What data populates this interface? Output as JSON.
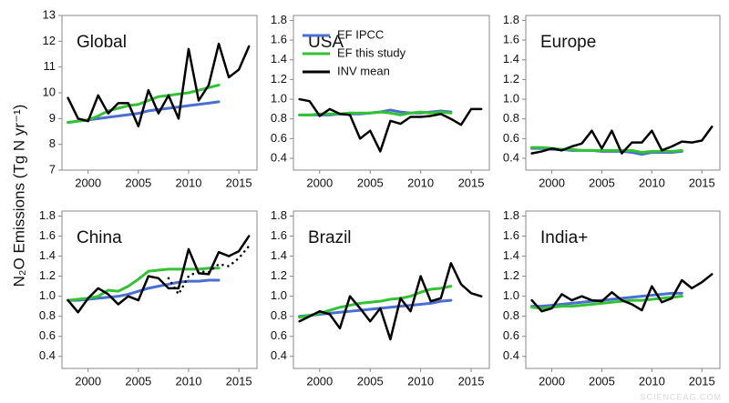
{
  "ylabel": "N₂O Emissions  (Tg N yr⁻¹)",
  "watermark": "SCIENCEAG.COM",
  "chart_data": [
    {
      "type": "line",
      "title": "Global",
      "x": [
        1998,
        1999,
        2000,
        2001,
        2002,
        2003,
        2004,
        2005,
        2006,
        2007,
        2008,
        2009,
        2010,
        2011,
        2012,
        2013,
        2014,
        2015,
        2016
      ],
      "xlim": [
        1997.4,
        2016.8
      ],
      "ylim": [
        7,
        13
      ],
      "xticks": [
        2000,
        2005,
        2010,
        2015
      ],
      "yticks": [
        7,
        8,
        9,
        10,
        11,
        12,
        13
      ],
      "series": [
        {
          "color": "#4a6fd1",
          "values": [
            8.85,
            8.9,
            8.95,
            9.0,
            9.05,
            9.1,
            9.15,
            9.2,
            9.3,
            9.35,
            9.4,
            9.45,
            9.5,
            9.55,
            9.6,
            9.65,
            null,
            null,
            null
          ]
        },
        {
          "color": "#33c233",
          "values": [
            8.85,
            8.9,
            8.95,
            9.1,
            9.3,
            9.4,
            9.5,
            9.55,
            9.7,
            9.85,
            9.9,
            9.95,
            10.0,
            10.1,
            10.2,
            10.3,
            null,
            null,
            null
          ]
        },
        {
          "color": "#000000",
          "values": [
            9.8,
            9.0,
            8.9,
            9.9,
            9.2,
            9.6,
            9.6,
            8.7,
            10.1,
            9.2,
            9.9,
            9.0,
            11.7,
            9.7,
            10.3,
            11.9,
            10.6,
            10.9,
            11.8
          ]
        }
      ]
    },
    {
      "type": "line",
      "title": "USA",
      "x": [
        1998,
        1999,
        2000,
        2001,
        2002,
        2003,
        2004,
        2005,
        2006,
        2007,
        2008,
        2009,
        2010,
        2011,
        2012,
        2013,
        2014,
        2015,
        2016
      ],
      "xlim": [
        1997.4,
        2016.8
      ],
      "ylim": [
        0.28,
        1.85
      ],
      "xticks": [
        2000,
        2005,
        2010,
        2015
      ],
      "yticks": [
        0.4,
        0.6,
        0.8,
        {
          "value": 1,
          "label": "1.0"
        },
        1.2,
        1.4,
        1.6,
        1.8
      ],
      "legend": "upper left",
      "series": [
        {
          "name": "EF IPCC",
          "color": "#4a6fd1",
          "values": [
            0.84,
            0.84,
            0.84,
            0.84,
            0.85,
            0.85,
            0.85,
            0.86,
            0.87,
            0.89,
            0.87,
            0.86,
            0.86,
            0.87,
            0.88,
            0.87,
            null,
            null,
            null
          ]
        },
        {
          "name": "EF this study",
          "color": "#33c233",
          "values": [
            0.84,
            0.84,
            0.85,
            0.85,
            0.85,
            0.86,
            0.86,
            0.86,
            0.87,
            0.86,
            0.84,
            0.86,
            0.87,
            0.86,
            0.87,
            0.86,
            null,
            null,
            null
          ]
        },
        {
          "name": "INV mean",
          "color": "#000000",
          "values": [
            1.0,
            0.98,
            0.83,
            0.9,
            0.85,
            0.84,
            0.6,
            0.68,
            0.47,
            0.78,
            0.75,
            0.82,
            0.82,
            0.83,
            0.85,
            0.8,
            0.74,
            0.9,
            0.9
          ]
        }
      ]
    },
    {
      "type": "line",
      "title": "Europe",
      "x": [
        1998,
        1999,
        2000,
        2001,
        2002,
        2003,
        2004,
        2005,
        2006,
        2007,
        2008,
        2009,
        2010,
        2011,
        2012,
        2013,
        2014,
        2015,
        2016
      ],
      "xlim": [
        1997.4,
        2016.8
      ],
      "ylim": [
        0.28,
        1.85
      ],
      "xticks": [
        2000,
        2005,
        2010,
        2015
      ],
      "yticks": [
        0.4,
        0.6,
        0.8,
        {
          "value": 1,
          "label": "1.0"
        },
        1.2,
        1.4,
        1.6,
        1.8
      ],
      "series": [
        {
          "color": "#4a6fd1",
          "values": [
            0.5,
            0.5,
            0.49,
            0.49,
            0.48,
            0.48,
            0.48,
            0.47,
            0.47,
            0.47,
            0.46,
            0.44,
            0.46,
            0.46,
            0.46,
            0.47,
            null,
            null,
            null
          ]
        },
        {
          "color": "#33c233",
          "values": [
            0.51,
            0.51,
            0.5,
            0.49,
            0.49,
            0.48,
            0.48,
            0.48,
            0.48,
            0.48,
            0.48,
            0.46,
            0.47,
            0.47,
            0.47,
            0.48,
            null,
            null,
            null
          ]
        },
        {
          "color": "#000000",
          "values": [
            0.45,
            0.47,
            0.5,
            0.48,
            0.52,
            0.55,
            0.68,
            0.5,
            0.68,
            0.45,
            0.56,
            0.56,
            0.68,
            0.48,
            0.52,
            0.57,
            0.56,
            0.58,
            0.72
          ]
        }
      ]
    },
    {
      "type": "line",
      "title": "China",
      "x": [
        1998,
        1999,
        2000,
        2001,
        2002,
        2003,
        2004,
        2005,
        2006,
        2007,
        2008,
        2009,
        2010,
        2011,
        2012,
        2013,
        2014,
        2015,
        2016
      ],
      "xlim": [
        1997.4,
        2016.8
      ],
      "ylim": [
        0.28,
        1.85
      ],
      "xticks": [
        2000,
        2005,
        2010,
        2015
      ],
      "yticks": [
        0.4,
        0.6,
        0.8,
        {
          "value": 1,
          "label": "1.0"
        },
        1.2,
        1.4,
        1.6,
        1.8
      ],
      "series": [
        {
          "color": "#4a6fd1",
          "values": [
            0.96,
            0.96,
            0.97,
            0.98,
            0.99,
            1.0,
            1.02,
            1.05,
            1.08,
            1.1,
            1.12,
            1.14,
            1.15,
            1.15,
            1.16,
            1.16,
            null,
            null,
            null
          ]
        },
        {
          "color": "#33c233",
          "values": [
            0.96,
            0.97,
            0.98,
            1.0,
            1.06,
            1.05,
            1.1,
            1.17,
            1.25,
            1.26,
            1.27,
            1.27,
            1.27,
            1.27,
            1.28,
            1.28,
            null,
            null,
            null
          ]
        },
        {
          "color": "#000000",
          "values": [
            0.96,
            0.84,
            0.98,
            1.08,
            1.02,
            0.92,
            1.0,
            0.96,
            1.2,
            1.18,
            1.08,
            1.08,
            1.47,
            1.23,
            1.22,
            1.44,
            1.4,
            1.45,
            1.6
          ]
        },
        {
          "color": "#000000",
          "style": "dotted",
          "values": [
            null,
            null,
            null,
            null,
            null,
            null,
            null,
            null,
            null,
            null,
            1.18,
            1.02,
            1.2,
            1.25,
            1.24,
            1.32,
            1.3,
            1.38,
            1.5
          ]
        }
      ]
    },
    {
      "type": "line",
      "title": "Brazil",
      "x": [
        1998,
        1999,
        2000,
        2001,
        2002,
        2003,
        2004,
        2005,
        2006,
        2007,
        2008,
        2009,
        2010,
        2011,
        2012,
        2013,
        2014,
        2015,
        2016
      ],
      "xlim": [
        1997.4,
        2016.8
      ],
      "ylim": [
        0.28,
        1.85
      ],
      "xticks": [
        2000,
        2005,
        2010,
        2015
      ],
      "yticks": [
        0.4,
        0.6,
        0.8,
        {
          "value": 1,
          "label": "1.0"
        },
        1.2,
        1.4,
        1.6,
        1.8
      ],
      "series": [
        {
          "color": "#4a6fd1",
          "values": [
            0.8,
            0.81,
            0.82,
            0.83,
            0.84,
            0.85,
            0.86,
            0.87,
            0.88,
            0.89,
            0.9,
            0.91,
            0.92,
            0.93,
            0.95,
            0.96,
            null,
            null,
            null
          ]
        },
        {
          "color": "#33c233",
          "values": [
            0.79,
            0.81,
            0.83,
            0.86,
            0.89,
            0.91,
            0.93,
            0.94,
            0.95,
            0.97,
            0.98,
            1.0,
            1.04,
            1.07,
            1.08,
            1.1,
            null,
            null,
            null
          ]
        },
        {
          "color": "#000000",
          "values": [
            0.75,
            0.8,
            0.85,
            0.82,
            0.68,
            1.0,
            0.88,
            0.75,
            0.88,
            0.57,
            0.98,
            0.85,
            1.2,
            0.95,
            0.98,
            1.33,
            1.12,
            1.03,
            1.0
          ]
        }
      ]
    },
    {
      "type": "line",
      "title": "India+",
      "x": [
        1998,
        1999,
        2000,
        2001,
        2002,
        2003,
        2004,
        2005,
        2006,
        2007,
        2008,
        2009,
        2010,
        2011,
        2012,
        2013,
        2014,
        2015,
        2016
      ],
      "xlim": [
        1997.4,
        2016.8
      ],
      "ylim": [
        0.28,
        1.85
      ],
      "xticks": [
        2000,
        2005,
        2010,
        2015
      ],
      "yticks": [
        0.4,
        0.6,
        0.8,
        {
          "value": 1,
          "label": "1.0"
        },
        1.2,
        1.4,
        1.6,
        1.8
      ],
      "series": [
        {
          "color": "#4a6fd1",
          "values": [
            0.9,
            0.9,
            0.91,
            0.92,
            0.93,
            0.94,
            0.95,
            0.96,
            0.97,
            0.98,
            0.99,
            1.0,
            1.01,
            1.02,
            1.03,
            1.03,
            null,
            null,
            null
          ]
        },
        {
          "color": "#33c233",
          "values": [
            0.89,
            0.88,
            0.89,
            0.9,
            0.9,
            0.91,
            0.92,
            0.93,
            0.94,
            0.95,
            0.96,
            0.96,
            0.97,
            0.98,
            0.99,
            1.0,
            null,
            null,
            null
          ]
        },
        {
          "color": "#000000",
          "values": [
            0.96,
            0.85,
            0.88,
            1.02,
            0.96,
            1.0,
            0.96,
            0.95,
            1.04,
            0.96,
            0.92,
            0.86,
            1.1,
            0.94,
            0.98,
            1.16,
            1.08,
            1.14,
            1.22
          ]
        }
      ]
    }
  ]
}
